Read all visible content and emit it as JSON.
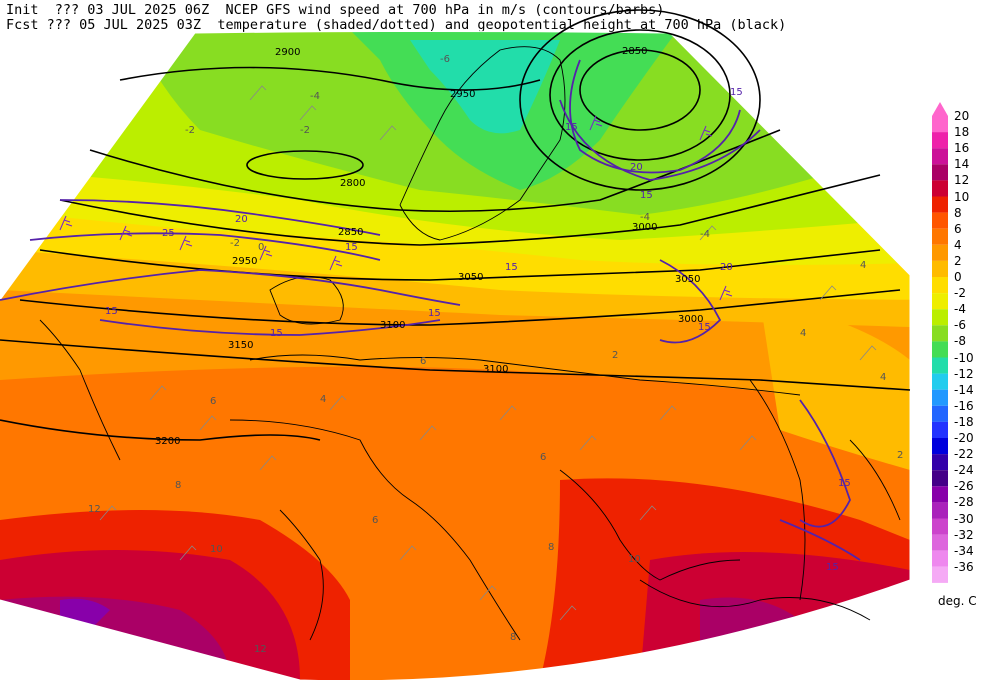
{
  "header": {
    "line1": "Init  ??? 03 JUL 2025 06Z  NCEP GFS wind speed at 700 hPa in m/s (contours/barbs)",
    "line2": "Fcst ??? 05 JUL 2025 03Z  temperature (shaded/dotted) and geopotential height at 700 hPa (black)"
  },
  "colorbar": {
    "units": "deg. C",
    "levels": [
      {
        "label": "20",
        "color": "#ff66cc"
      },
      {
        "label": "18",
        "color": "#ee22aa"
      },
      {
        "label": "16",
        "color": "#cc1199"
      },
      {
        "label": "14",
        "color": "#aa0066"
      },
      {
        "label": "12",
        "color": "#cc0033"
      },
      {
        "label": "10",
        "color": "#ee2200"
      },
      {
        "label": "8",
        "color": "#ff5500"
      },
      {
        "label": "6",
        "color": "#ff7700"
      },
      {
        "label": "4",
        "color": "#ff9900"
      },
      {
        "label": "2",
        "color": "#ffbb00"
      },
      {
        "label": "0",
        "color": "#ffdd00"
      },
      {
        "label": "-2",
        "color": "#eeee00"
      },
      {
        "label": "-4",
        "color": "#bbee00"
      },
      {
        "label": "-6",
        "color": "#88dd22"
      },
      {
        "label": "-8",
        "color": "#44dd55"
      },
      {
        "label": "-10",
        "color": "#22ddaa"
      },
      {
        "label": "-12",
        "color": "#22ccee"
      },
      {
        "label": "-14",
        "color": "#2299ff"
      },
      {
        "label": "-16",
        "color": "#2266ff"
      },
      {
        "label": "-18",
        "color": "#2233ff"
      },
      {
        "label": "-20",
        "color": "#0000dd"
      },
      {
        "label": "-22",
        "color": "#3300aa"
      },
      {
        "label": "-24",
        "color": "#440088"
      },
      {
        "label": "-26",
        "color": "#8800aa"
      },
      {
        "label": "-28",
        "color": "#aa22bb"
      },
      {
        "label": "-30",
        "color": "#cc44cc"
      },
      {
        "label": "-32",
        "color": "#dd66dd"
      },
      {
        "label": "-34",
        "color": "#ee88ee"
      },
      {
        "label": "-36",
        "color": "#f5aaf5"
      }
    ]
  },
  "height_labels": [
    "2900",
    "2850",
    "2950",
    "2800",
    "3000",
    "3050",
    "3000",
    "3100",
    "3150",
    "3200",
    "2850",
    "2950",
    "3050",
    "3100"
  ],
  "wind_labels": [
    "15",
    "15",
    "15",
    "20",
    "25",
    "20",
    "15",
    "15",
    "15",
    "15",
    "15",
    "20",
    "15",
    "15",
    "15"
  ],
  "temp_labels": [
    "-2",
    "-4",
    "-2",
    "-2",
    "-6",
    "-4",
    "-4",
    "0",
    "2",
    "4",
    "4",
    "6",
    "6",
    "8",
    "10",
    "12",
    "12",
    "8",
    "6",
    "4",
    "2",
    "4",
    "6",
    "8",
    "10"
  ]
}
